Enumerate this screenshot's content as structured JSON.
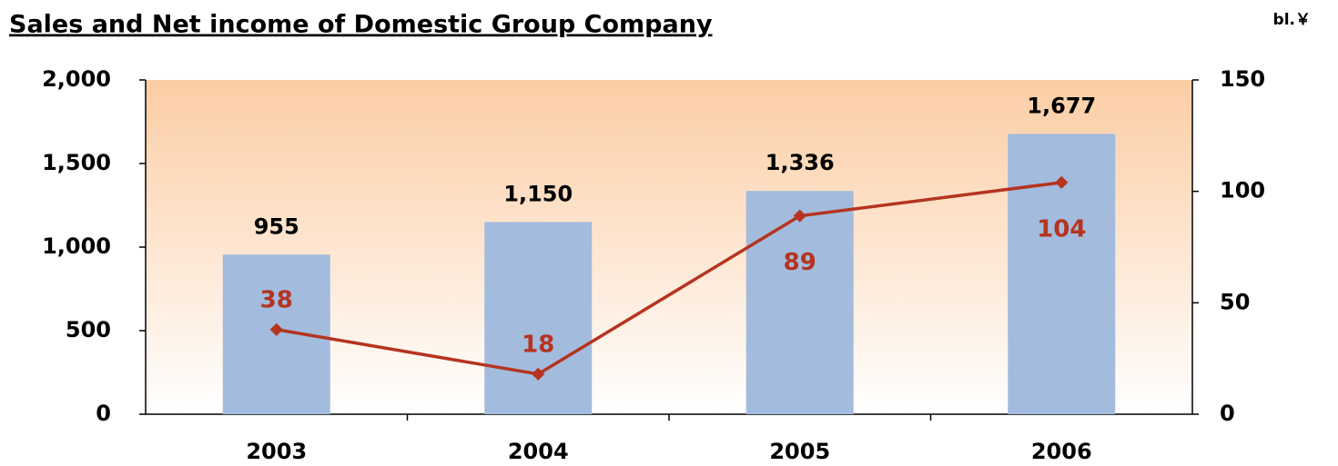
{
  "chart_data": {
    "type": "bar",
    "title": "Sales and Net income of  Domestic Group Company",
    "unit": "bl.￥",
    "categories": [
      "2003",
      "2004",
      "2005",
      "2006"
    ],
    "series": [
      {
        "type": "bar",
        "color": "#a3bbdd",
        "values": [
          955,
          1150,
          1336,
          1677
        ],
        "value_labels": [
          "955",
          "1,150",
          "1,336",
          "1,677"
        ]
      },
      {
        "type": "line",
        "axis": "y2",
        "color": "#b5341f",
        "values": [
          38,
          18,
          89,
          104
        ]
      }
    ],
    "ylim": [
      0,
      2000
    ],
    "yticks": [
      0,
      500,
      {
        "value": 1000,
        "label": "1,000"
      },
      {
        "value": 1500,
        "label": "1,500"
      },
      {
        "value": 2000,
        "label": "2,000"
      }
    ],
    "y2lim": [
      0,
      150
    ],
    "y2ticks": [
      0,
      50,
      100,
      150
    ],
    "background": [
      "#fccda4",
      "#ffffff"
    ]
  }
}
